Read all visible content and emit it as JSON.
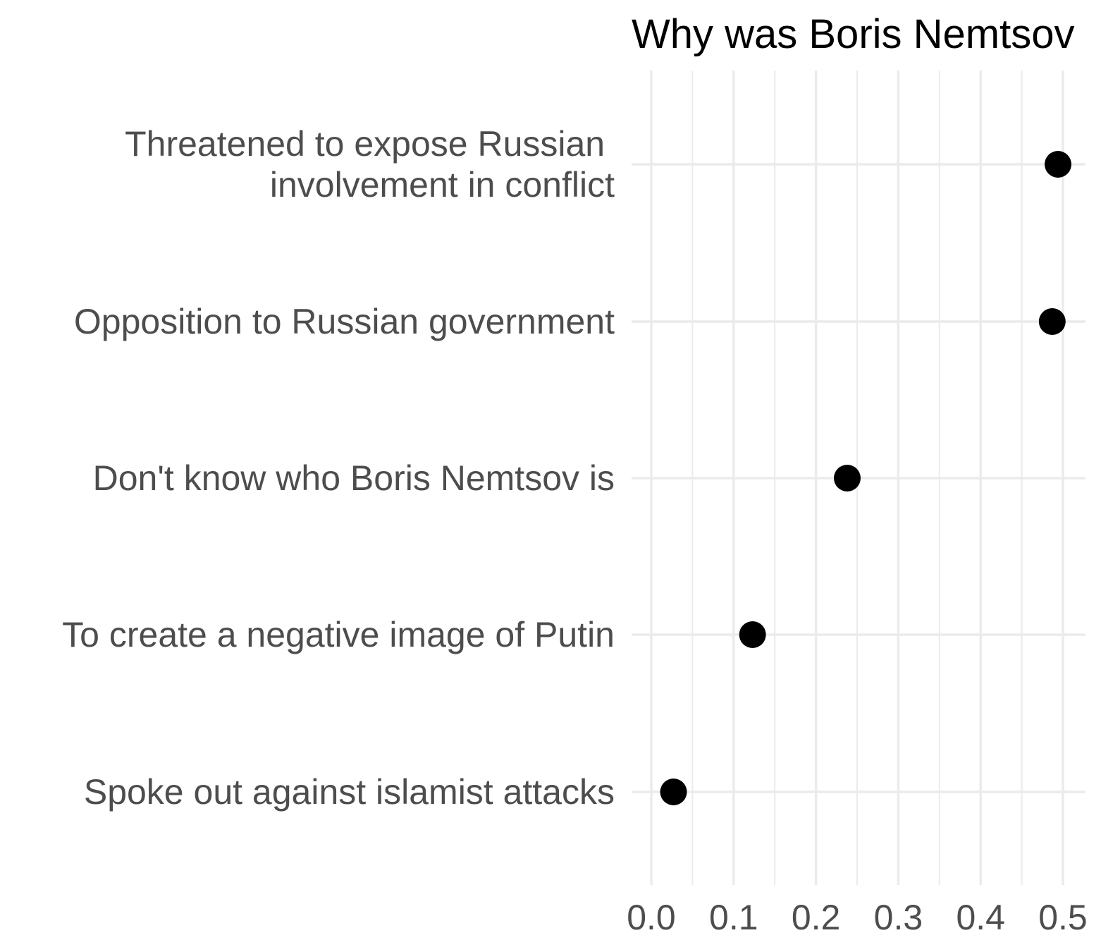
{
  "chart_data": {
    "type": "scatter",
    "title": "Why was Boris Nemtsov",
    "xlabel": "",
    "ylabel": "",
    "xlim": [
      -0.025,
      0.52
    ],
    "x_ticks": [
      {
        "value": 0.0,
        "label": "0.0"
      },
      {
        "value": 0.1,
        "label": "0.1"
      },
      {
        "value": 0.2,
        "label": "0.2"
      },
      {
        "value": 0.3,
        "label": "0.3"
      },
      {
        "value": 0.4,
        "label": "0.4"
      },
      {
        "value": 0.5,
        "label": "0.5"
      }
    ],
    "minor_ticks": [
      0.05,
      0.15,
      0.25,
      0.35,
      0.45
    ],
    "grid": true,
    "legend": "none",
    "point_color": "#000000",
    "categories": [
      {
        "lines": [
          "Threatened to expose Russian ",
          "involvement in conflict"
        ],
        "value": 0.494
      },
      {
        "lines": [
          "Opposition to Russian government"
        ],
        "value": 0.487
      },
      {
        "lines": [
          "Don't know who Boris Nemtsov is"
        ],
        "value": 0.238
      },
      {
        "lines": [
          "To create a negative image of Putin"
        ],
        "value": 0.123
      },
      {
        "lines": [
          "Spoke out against islamist attacks"
        ],
        "value": 0.027
      }
    ]
  }
}
